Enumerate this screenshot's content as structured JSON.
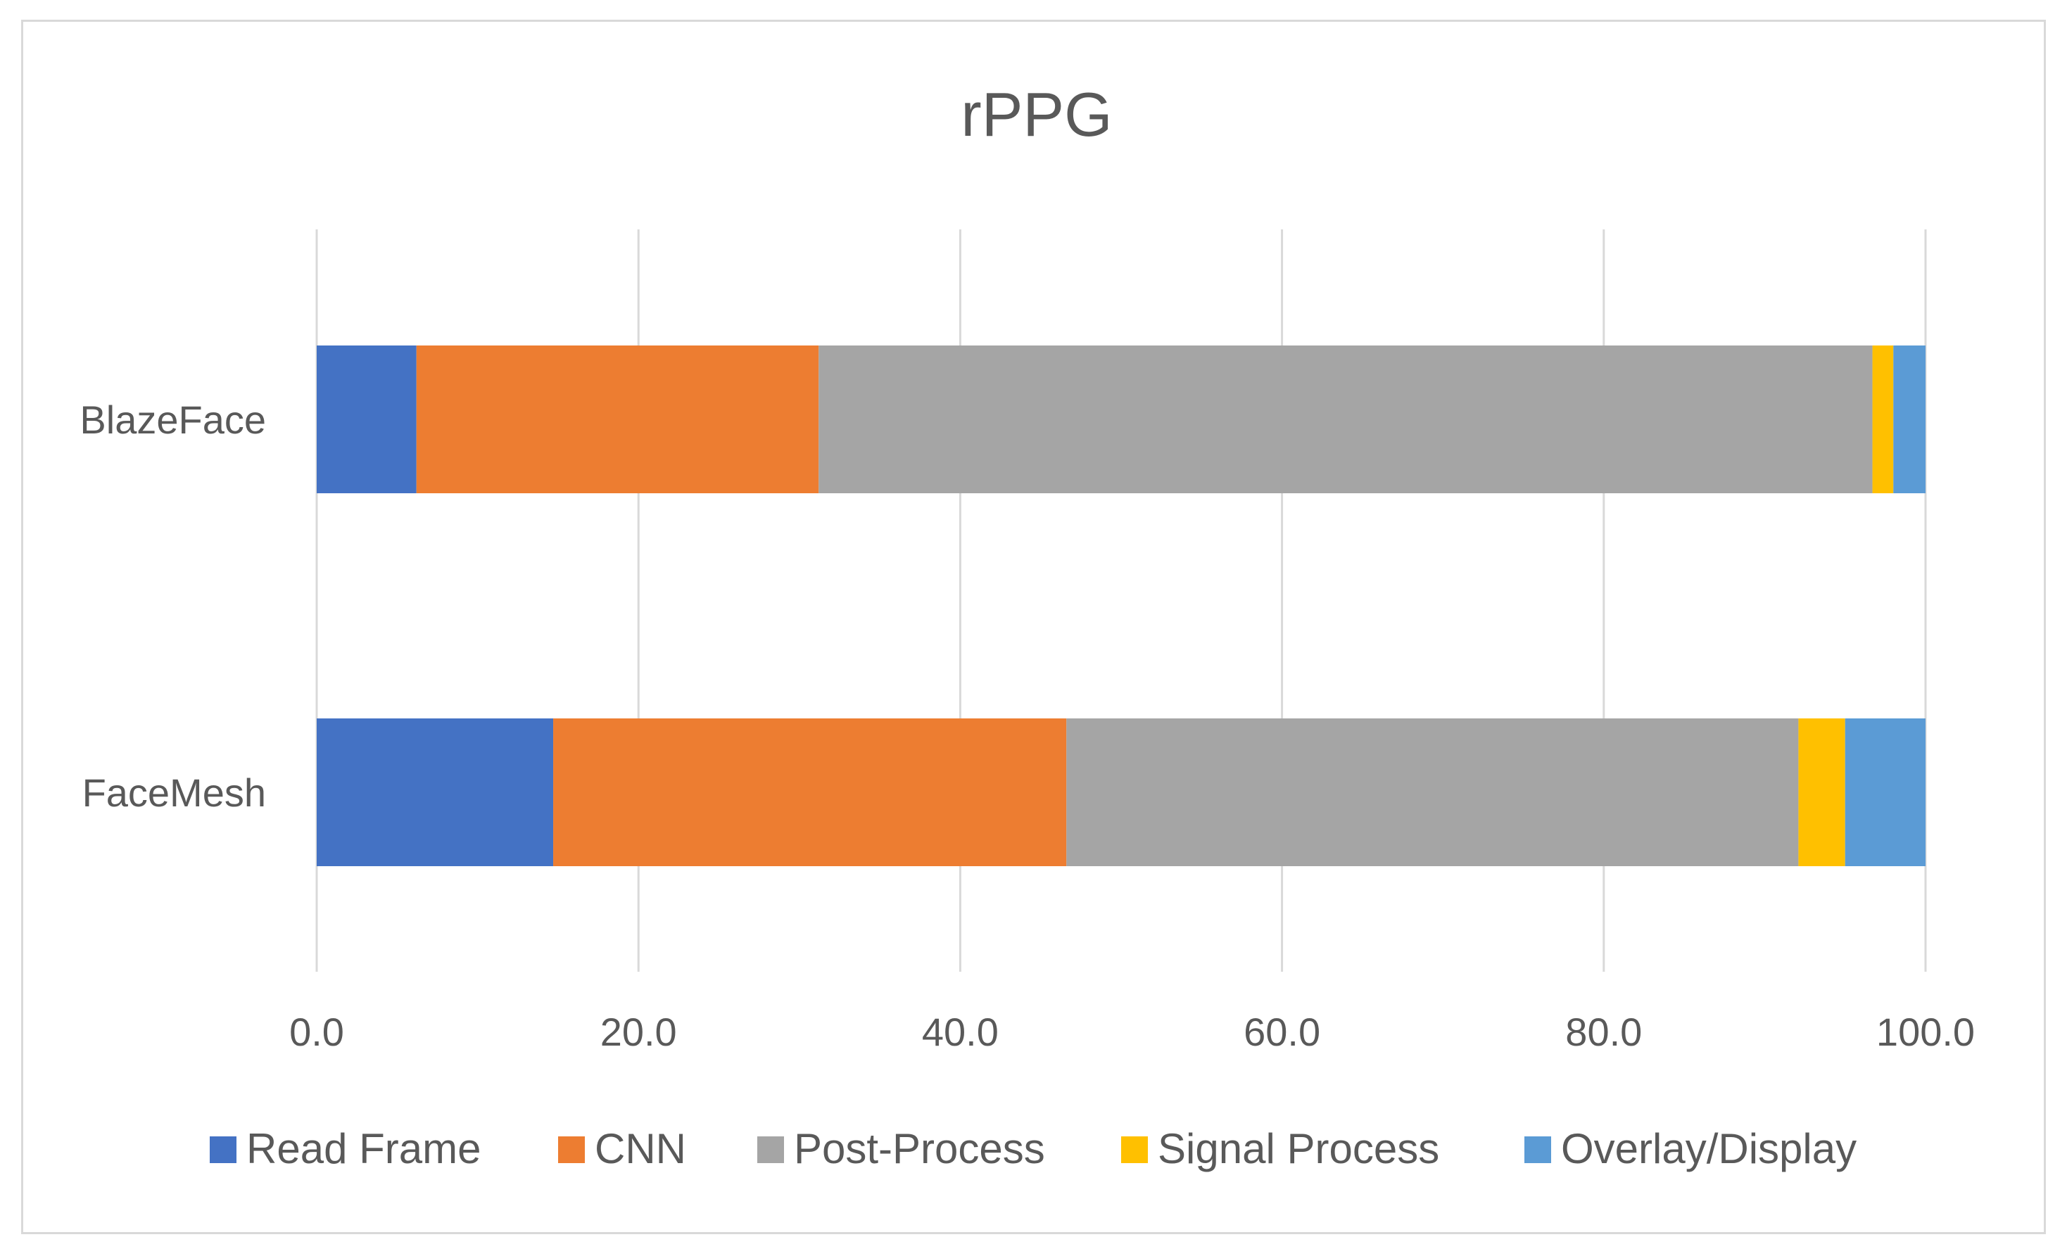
{
  "chart_data": {
    "type": "bar",
    "orientation": "horizontal",
    "stacked": true,
    "title": "rPPG",
    "xlabel": "",
    "ylabel": "",
    "xlim": [
      0,
      100
    ],
    "ticks": [
      "0.0",
      "20.0",
      "40.0",
      "60.0",
      "80.0",
      "100.0"
    ],
    "tick_values": [
      0,
      20,
      40,
      60,
      80,
      100
    ],
    "grid": true,
    "legend_position": "bottom",
    "categories": [
      "BlazeFace",
      "FaceMesh"
    ],
    "series": [
      {
        "name": "Read Frame",
        "color": "#4472C4",
        "values": [
          6.2,
          14.7
        ]
      },
      {
        "name": "CNN",
        "color": "#ED7D31",
        "values": [
          25.0,
          31.9
        ]
      },
      {
        "name": "Post-Process",
        "color": "#A5A5A5",
        "values": [
          65.5,
          45.5
        ]
      },
      {
        "name": "Signal Process",
        "color": "#FFC000",
        "values": [
          1.3,
          2.9
        ]
      },
      {
        "name": "Overlay/Display",
        "color": "#5B9BD5",
        "values": [
          2.0,
          5.0
        ]
      }
    ]
  }
}
